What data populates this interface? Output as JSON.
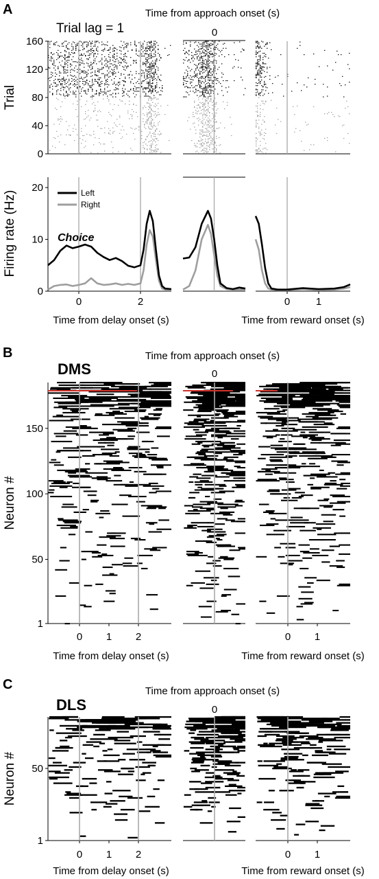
{
  "panels": {
    "a": {
      "letter": "A",
      "header": "Time from approach onset (s)",
      "lag_label": "Trial lag = 1"
    },
    "b": {
      "letter": "B",
      "header": "Time from approach onset (s)",
      "region": "DMS"
    },
    "c": {
      "letter": "C",
      "header": "Time from approach onset (s)",
      "region": "DLS"
    }
  },
  "chart_data": [
    {
      "id": "A_raster",
      "type": "scatter",
      "description_type": "spike raster",
      "ylabel": "Trial",
      "ylim": [
        0,
        160
      ],
      "yticks": [
        0,
        40,
        80,
        120,
        160
      ],
      "middle_tick_label": "0",
      "segments": [
        "delay onset",
        "approach onset",
        "reward onset"
      ],
      "series": [
        {
          "name": "Left",
          "color": "#000000",
          "trials": [
            81,
            160
          ],
          "rate_profile_hz": {
            "delay": 8,
            "approach_peak": 15.5,
            "reward": 2
          }
        },
        {
          "name": "Right",
          "color": "#9e9e9e",
          "trials": [
            1,
            80
          ],
          "rate_profile_hz": {
            "delay": 1.5,
            "approach_peak": 12.5,
            "reward": 1
          }
        }
      ]
    },
    {
      "id": "A_psth",
      "type": "line",
      "ylabel": "Firing rate (Hz)",
      "ylim": [
        0,
        22
      ],
      "yticks": [
        0,
        10,
        20
      ],
      "annotation": "Choice",
      "legend": [
        "Left",
        "Right"
      ],
      "legend_position": "top-left",
      "segments": [
        {
          "name": "delay",
          "xlabel": "Time from delay onset (s)",
          "xlim": [
            -1.0,
            3.0
          ],
          "xticks": [
            0,
            2
          ],
          "xticklabels": [
            "0",
            "2"
          ],
          "markers": [
            0,
            2
          ]
        },
        {
          "name": "approach",
          "xlabel": "",
          "xlim": [
            -1.0,
            1.0
          ],
          "xticks": [],
          "xticklabels": [],
          "markers": [
            0
          ]
        },
        {
          "name": "reward",
          "xlabel": "Time from reward onset (s)",
          "xlim": [
            -1.0,
            2.0
          ],
          "xticks": [
            0,
            1
          ],
          "xticklabels": [
            "0",
            "1"
          ],
          "markers": [
            0
          ]
        }
      ],
      "series": [
        {
          "name": "Left",
          "color": "#000000",
          "segments": {
            "delay": {
              "x": [
                -1.0,
                -0.8,
                -0.6,
                -0.4,
                -0.2,
                0.0,
                0.2,
                0.4,
                0.6,
                0.8,
                1.0,
                1.2,
                1.4,
                1.6,
                1.8,
                2.0,
                2.1,
                2.2,
                2.3,
                2.4,
                2.5,
                2.6,
                2.7,
                2.8,
                3.0
              ],
              "y": [
                5.0,
                6.0,
                7.8,
                8.8,
                8.3,
                8.6,
                9.0,
                8.6,
                7.4,
                6.6,
                6.0,
                6.4,
                5.8,
                4.9,
                4.6,
                5.0,
                8.0,
                13.0,
                15.5,
                13.5,
                8.0,
                3.0,
                1.0,
                0.5,
                0.4
              ]
            },
            "approach": {
              "x": [
                -1.0,
                -0.8,
                -0.6,
                -0.4,
                -0.2,
                -0.1,
                0.0,
                0.1,
                0.2,
                0.4,
                0.6,
                0.8,
                1.0
              ],
              "y": [
                6.3,
                6.5,
                8.5,
                13.0,
                15.5,
                14.0,
                10.0,
                5.0,
                1.5,
                0.6,
                0.4,
                0.7,
                0.5
              ]
            },
            "reward": {
              "x": [
                -1.0,
                -0.9,
                -0.8,
                -0.7,
                -0.6,
                -0.5,
                -0.3,
                0.0,
                0.5,
                1.0,
                1.5,
                1.8,
                2.0
              ],
              "y": [
                14.5,
                13.0,
                9.0,
                4.5,
                1.5,
                0.5,
                0.3,
                0.3,
                0.6,
                0.4,
                0.5,
                0.8,
                1.3
              ]
            }
          }
        },
        {
          "name": "Right",
          "color": "#9e9e9e",
          "segments": {
            "delay": {
              "x": [
                -1.0,
                -0.8,
                -0.6,
                -0.4,
                -0.2,
                0.0,
                0.2,
                0.4,
                0.6,
                0.8,
                1.0,
                1.2,
                1.4,
                1.6,
                1.8,
                2.0,
                2.1,
                2.2,
                2.3,
                2.4,
                2.5,
                2.6,
                2.7,
                2.8,
                3.0
              ],
              "y": [
                0.3,
                1.0,
                1.2,
                1.3,
                1.0,
                1.2,
                1.5,
                2.5,
                1.5,
                1.2,
                1.3,
                1.5,
                1.2,
                1.4,
                1.2,
                1.5,
                4.0,
                9.0,
                11.8,
                10.5,
                6.0,
                2.0,
                0.5,
                0.3,
                0.3
              ]
            },
            "approach": {
              "x": [
                -1.0,
                -0.8,
                -0.6,
                -0.4,
                -0.2,
                -0.1,
                0.0,
                0.1,
                0.2,
                0.4,
                0.6,
                0.8,
                1.0
              ],
              "y": [
                0.3,
                1.0,
                4.0,
                10.0,
                12.8,
                11.0,
                7.0,
                3.0,
                1.0,
                0.4,
                0.3,
                0.3,
                0.3
              ]
            },
            "reward": {
              "x": [
                -1.0,
                -0.9,
                -0.8,
                -0.7,
                -0.6,
                -0.5,
                -0.3,
                0.0,
                0.5,
                1.0,
                1.5,
                1.8,
                2.0
              ],
              "y": [
                10.0,
                8.0,
                4.0,
                1.5,
                0.5,
                0.3,
                0.2,
                0.2,
                0.4,
                0.2,
                0.3,
                0.5,
                0.8
              ]
            }
          }
        }
      ]
    },
    {
      "id": "B_population",
      "type": "heatmap",
      "ylabel": "Neuron #",
      "n_neurons": 185,
      "yticks": [
        1,
        50,
        100,
        150
      ],
      "middle_tick_label": "0",
      "marker_row_color": "#d0312d",
      "segments": [
        {
          "name": "delay",
          "xlabel": "Time from delay onset (s)",
          "xticks": [
            0,
            1,
            2
          ],
          "xticklabels": [
            "0",
            "1",
            "2"
          ]
        },
        {
          "name": "approach",
          "xlabel": "",
          "xticks": [],
          "xticklabels": []
        },
        {
          "name": "reward",
          "xlabel": "Time from reward onset (s)",
          "xticks": [
            0,
            1
          ],
          "xticklabels": [
            "0",
            "1"
          ]
        }
      ]
    },
    {
      "id": "C_population",
      "type": "heatmap",
      "ylabel": "Neuron #",
      "n_neurons": 85,
      "yticks": [
        1,
        50
      ],
      "middle_tick_label": "0",
      "segments": [
        {
          "name": "delay",
          "xlabel": "Time from delay onset (s)",
          "xticks": [
            0,
            1,
            2
          ],
          "xticklabels": [
            "0",
            "1",
            "2"
          ]
        },
        {
          "name": "approach",
          "xlabel": "",
          "xticks": [],
          "xticklabels": []
        },
        {
          "name": "reward",
          "xlabel": "Time from reward onset (s)",
          "xticks": [
            0,
            1
          ],
          "xticklabels": [
            "0",
            "1"
          ]
        }
      ]
    }
  ]
}
